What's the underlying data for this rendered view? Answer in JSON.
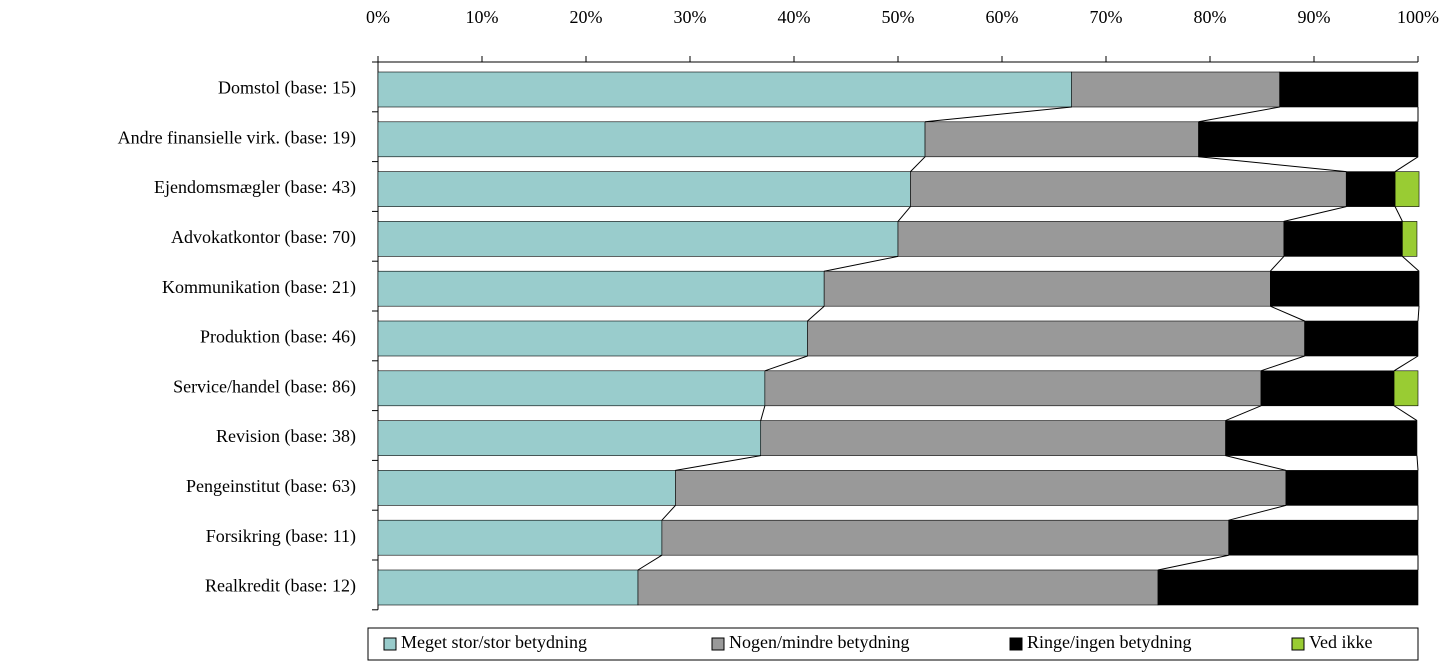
{
  "chart_data": {
    "type": "stacked_barh_100",
    "categories": [
      "Domstol (base: 15)",
      "Andre finansielle virk. (base: 19)",
      "Ejendomsmægler (base: 43)",
      "Advokatkontor (base: 70)",
      "Kommunikation (base: 21)",
      "Produktion (base: 46)",
      "Service/handel (base: 86)",
      "Revision (base: 38)",
      "Pengeinstitut (base: 63)",
      "Forsikring (base: 11)",
      "Realkredit (base: 12)"
    ],
    "series": [
      {
        "name": "Meget stor/stor betydning",
        "color": "#99cccc",
        "values": [
          66.7,
          52.6,
          51.2,
          50.0,
          42.9,
          41.3,
          37.2,
          36.8,
          28.6,
          27.3,
          25.0
        ]
      },
      {
        "name": "Nogen/mindre betydning",
        "color": "#999999",
        "values": [
          20.0,
          26.3,
          41.9,
          37.1,
          42.9,
          47.8,
          47.7,
          44.7,
          58.7,
          54.5,
          50.0
        ]
      },
      {
        "name": "Ringe/ingen betydning",
        "color": "#000000",
        "values": [
          13.3,
          21.1,
          4.7,
          11.4,
          14.3,
          10.9,
          12.8,
          18.4,
          12.7,
          18.2,
          25.0
        ]
      },
      {
        "name": "Ved ikke",
        "color": "#99cc33",
        "values": [
          0,
          0,
          2.3,
          1.4,
          0,
          0,
          2.3,
          0,
          0,
          0,
          0
        ]
      }
    ],
    "xlim": [
      0,
      100
    ],
    "xticks": [
      {
        "value": 0,
        "label": "0%"
      },
      {
        "value": 10,
        "label": "10%"
      },
      {
        "value": 20,
        "label": "20%"
      },
      {
        "value": 30,
        "label": "30%"
      },
      {
        "value": 40,
        "label": "40%"
      },
      {
        "value": 50,
        "label": "50%"
      },
      {
        "value": 60,
        "label": "60%"
      },
      {
        "value": 70,
        "label": "70%"
      },
      {
        "value": 80,
        "label": "80%"
      },
      {
        "value": 90,
        "label": "90%"
      },
      {
        "value": 100,
        "label": "100%"
      }
    ],
    "legend": "bottom"
  }
}
